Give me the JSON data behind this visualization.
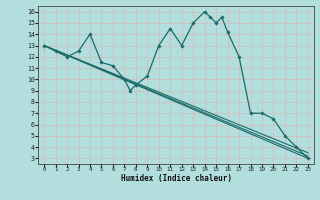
{
  "xlabel": "Humidex (Indice chaleur)",
  "bg_color": "#b2dede",
  "grid_color": "#c8e8e8",
  "line_color": "#1a6b6b",
  "xlim": [
    -0.5,
    23.5
  ],
  "ylim": [
    2.5,
    16.5
  ],
  "xticks": [
    0,
    1,
    2,
    3,
    4,
    5,
    6,
    7,
    8,
    9,
    10,
    11,
    12,
    13,
    14,
    15,
    16,
    17,
    18,
    19,
    20,
    21,
    22,
    23
  ],
  "yticks": [
    3,
    4,
    5,
    6,
    7,
    8,
    9,
    10,
    11,
    12,
    13,
    14,
    15,
    16
  ],
  "main_line": {
    "x": [
      0,
      1,
      2,
      3,
      4,
      5,
      6,
      7,
      7.5,
      8,
      9,
      10,
      11,
      12,
      13,
      14,
      14.5,
      15,
      15.5,
      16,
      17,
      18,
      19,
      20,
      21,
      22,
      23
    ],
    "y": [
      13,
      12.5,
      12,
      12.5,
      14,
      11.5,
      11.2,
      10,
      9,
      9.5,
      10.3,
      13,
      14.5,
      13,
      15,
      16,
      15.5,
      15,
      15.5,
      14.2,
      12,
      7,
      7,
      6.5,
      5,
      4,
      3
    ]
  },
  "straight_lines": [
    {
      "x": [
        0,
        23
      ],
      "y": [
        13,
        3
      ]
    },
    {
      "x": [
        0,
        23
      ],
      "y": [
        13,
        3.2
      ]
    },
    {
      "x": [
        0,
        23
      ],
      "y": [
        13,
        3.5
      ]
    }
  ],
  "marker_points": {
    "x": [
      0,
      1,
      3,
      4,
      6,
      7,
      8,
      10,
      11,
      13,
      14,
      15,
      16,
      17,
      18,
      19,
      20,
      21,
      22,
      23
    ],
    "y": [
      13,
      12.5,
      12.5,
      14,
      11.2,
      10,
      9.5,
      13,
      14.5,
      15,
      16,
      15,
      14.2,
      12,
      7,
      7,
      6.5,
      5,
      4,
      3
    ]
  }
}
